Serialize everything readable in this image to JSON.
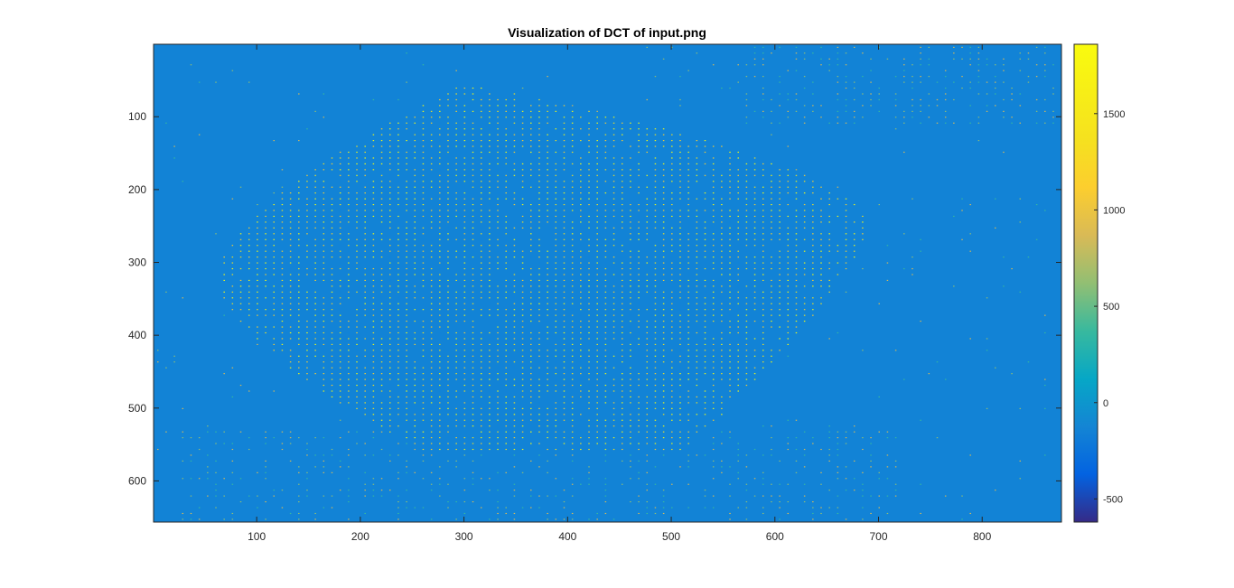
{
  "chart_data": {
    "type": "heatmap",
    "title": "Visualization of DCT of input.png",
    "xlabel": "",
    "ylabel": "",
    "xlim": [
      0.5,
      876.5
    ],
    "ylim": [
      0.5,
      656.5
    ],
    "y_direction": "reverse",
    "x_ticks": [
      100,
      200,
      300,
      400,
      500,
      600,
      700,
      800
    ],
    "y_ticks": [
      100,
      200,
      300,
      400,
      500,
      600
    ],
    "colorbar": {
      "colormap": "parula",
      "range": [
        -620,
        1860
      ],
      "ticks": [
        -500,
        0,
        500,
        1000,
        1500
      ]
    },
    "background_value": 0,
    "pattern": "sparse bright DCT coefficients on an 8-pixel block grid, concentrated in a lens-shaped region roughly spanning x 60-680 and y 40-560, plus faint bands near the top-right and bottom edges",
    "grid": false,
    "colors": {
      "background_cell": "#1283d6",
      "frame": "#262626"
    }
  }
}
